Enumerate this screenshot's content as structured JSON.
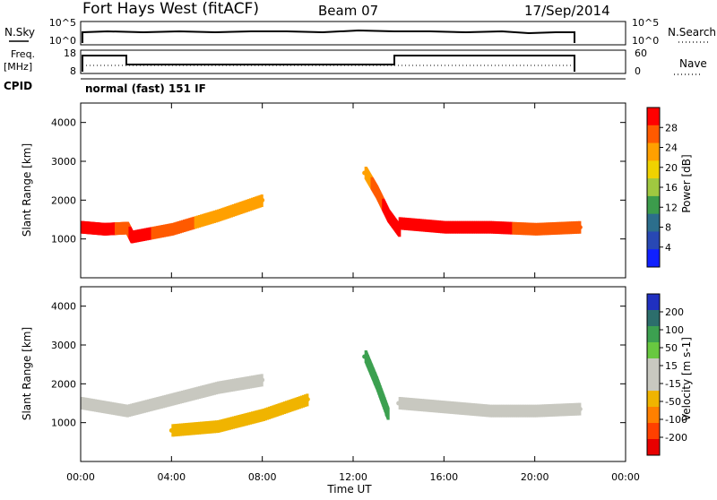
{
  "header": {
    "station": "Fort Hays West (fitACF)",
    "beam": "Beam 07",
    "date": "17/Sep/2014"
  },
  "top_panels": {
    "nsky_label": "N.Sky",
    "nsearch_label": "N.Search",
    "noise_ticks": [
      "10^5",
      "10^0"
    ],
    "freq_label": "Freq.",
    "freq_unit": "[MHz]",
    "freq_ticks": [
      "18",
      "8"
    ],
    "nave_ticks": [
      "60",
      "0"
    ],
    "nave_label": "Nave",
    "cpid_label": "CPID",
    "cpid_value": "normal (fast) 151 IF"
  },
  "power_colorbar": {
    "label": "Power [dB]",
    "ticks": [
      "28",
      "24",
      "20",
      "16",
      "12",
      "8",
      "4"
    ],
    "colors": [
      "#ff0000",
      "#ff5a00",
      "#ffa000",
      "#f0d200",
      "#a0c840",
      "#3c9c4c",
      "#2c6e8c",
      "#2848b4",
      "#1020ff"
    ]
  },
  "velocity_colorbar": {
    "label": "Velocity [m s-1]",
    "ticks": [
      "200",
      "100",
      "50",
      "15",
      "-15",
      "-50",
      "-100",
      "-200"
    ],
    "colors": [
      "#2030c0",
      "#2c6e6c",
      "#3ca050",
      "#68c840",
      "#c8c8c0",
      "#c8c8c0",
      "#f0b400",
      "#ff8000",
      "#ff4000",
      "#e80000"
    ]
  },
  "chart_data": [
    {
      "type": "scatter",
      "panel": "power",
      "ylabel": "Slant Range [km]",
      "xlabel": "",
      "ylim": [
        0,
        4500
      ],
      "xlim": [
        0,
        24
      ],
      "y_ticks": [
        "1000",
        "2000",
        "3000",
        "4000"
      ],
      "x_ticks": [],
      "series": [
        {
          "name": "",
          "x": [
            0,
            1,
            2,
            2.2,
            4,
            6,
            8
          ],
          "y": [
            1300,
            1250,
            1280,
            1050,
            1250,
            1600,
            2000
          ],
          "values": [
            28,
            28,
            24,
            28,
            24,
            20,
            20
          ]
        },
        {
          "name": "",
          "x": [
            12.5,
            13,
            13.5,
            14
          ],
          "y": [
            2700,
            2200,
            1600,
            1200
          ],
          "values": [
            20,
            24,
            28,
            28
          ]
        },
        {
          "name": "",
          "x": [
            14,
            16,
            18,
            20,
            22
          ],
          "y": [
            1400,
            1300,
            1300,
            1250,
            1300
          ],
          "values": [
            28,
            28,
            28,
            24,
            24
          ]
        }
      ]
    },
    {
      "type": "scatter",
      "panel": "velocity",
      "ylabel": "Slant Range [km]",
      "xlabel": "Time UT",
      "ylim": [
        0,
        4500
      ],
      "xlim": [
        0,
        24
      ],
      "y_ticks": [
        "1000",
        "2000",
        "3000",
        "4000"
      ],
      "x_ticks": [
        "00:00",
        "04:00",
        "08:00",
        "12:00",
        "16:00",
        "20:00",
        "00:00"
      ],
      "series": [
        {
          "name": "",
          "x": [
            0,
            2,
            4,
            6,
            8
          ],
          "y": [
            1500,
            1300,
            1600,
            1900,
            2100
          ],
          "values": [
            -15,
            -15,
            -15,
            -15,
            -15
          ]
        },
        {
          "name": "",
          "x": [
            4,
            6,
            8,
            10
          ],
          "y": [
            800,
            900,
            1200,
            1600
          ],
          "values": [
            -50,
            -50,
            -50,
            -50
          ]
        },
        {
          "name": "",
          "x": [
            12.5,
            13,
            13.5
          ],
          "y": [
            2700,
            2000,
            1200
          ],
          "values": [
            50,
            50,
            50
          ]
        },
        {
          "name": "",
          "x": [
            14,
            16,
            18,
            20,
            22
          ],
          "y": [
            1500,
            1400,
            1300,
            1300,
            1350
          ],
          "values": [
            -15,
            -15,
            -15,
            -15,
            -15
          ]
        }
      ]
    }
  ]
}
